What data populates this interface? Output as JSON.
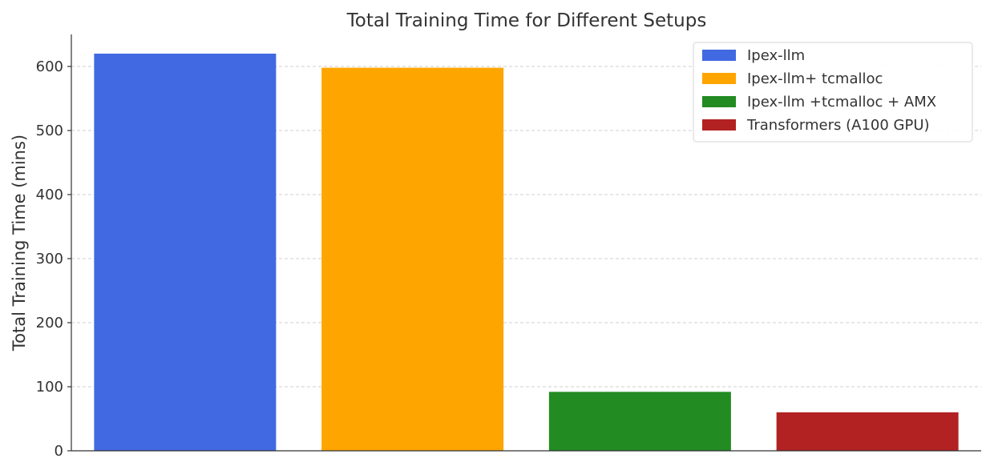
{
  "chart_data": {
    "type": "bar",
    "title": "Total Training Time for Different Setups",
    "xlabel": "",
    "ylabel": "Total Training Time (mins)",
    "ylim": [
      0,
      650
    ],
    "yticks": [
      0,
      100,
      200,
      300,
      400,
      500,
      600
    ],
    "grid": "horizontal-dashed",
    "legend_position": "top-right",
    "series": [
      {
        "name": "Ipex-llm",
        "value": 620,
        "color": "#4169E1"
      },
      {
        "name": "Ipex-llm+ tcmalloc",
        "value": 598,
        "color": "#FFA500"
      },
      {
        "name": "Ipex-llm +tcmalloc + AMX",
        "value": 92,
        "color": "#228B22"
      },
      {
        "name": "Transformers (A100 GPU)",
        "value": 60,
        "color": "#B22222"
      }
    ]
  }
}
